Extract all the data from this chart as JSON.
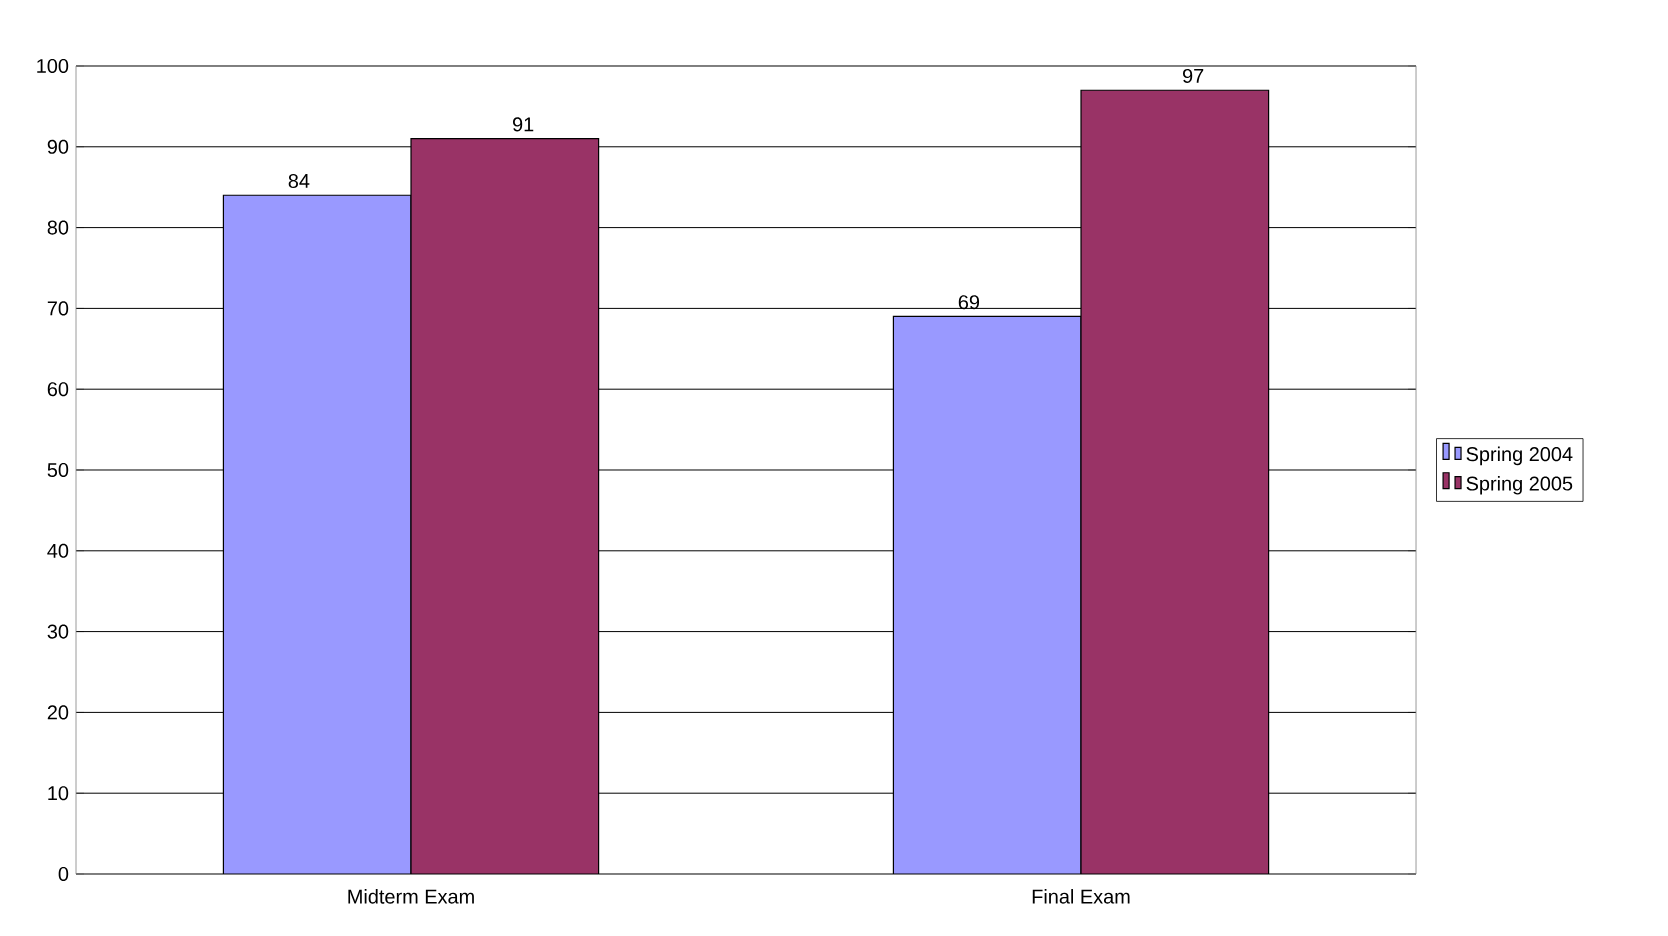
{
  "chart_data": {
    "type": "bar",
    "categories": [
      "Midterm Exam",
      "Final Exam"
    ],
    "series": [
      {
        "name": "Spring 2004",
        "color": "#9999ff",
        "values": [
          84,
          69
        ]
      },
      {
        "name": "Spring 2005",
        "color": "#993366",
        "values": [
          91,
          97
        ]
      }
    ],
    "ylim": [
      0,
      100
    ],
    "yticks": [
      0,
      10,
      20,
      30,
      40,
      50,
      60,
      70,
      80,
      90,
      100
    ],
    "grid": "y",
    "legend": "right",
    "data_labels": true
  }
}
